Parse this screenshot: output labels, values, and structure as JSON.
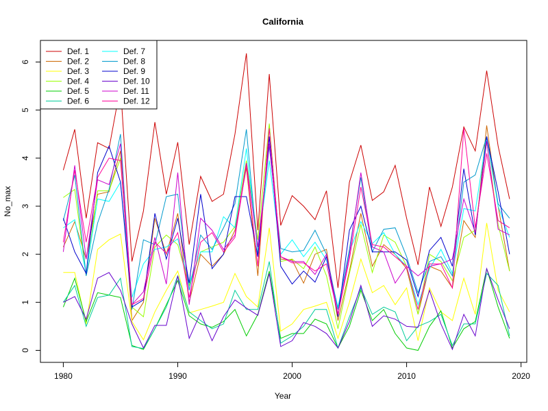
{
  "chart_data": {
    "type": "line",
    "title": "California",
    "xlabel": "Year",
    "ylabel": "No_max",
    "xlim": [
      1978,
      2020.5
    ],
    "ylim": [
      -0.25,
      6.45
    ],
    "x_ticks": [
      1980,
      1990,
      2000,
      2010,
      2020
    ],
    "y_ticks": [
      0,
      1,
      2,
      3,
      4,
      5,
      6
    ],
    "grid": false,
    "legend_position": "top-left",
    "x": [
      1980,
      1981,
      1982,
      1983,
      1984,
      1985,
      1986,
      1987,
      1988,
      1989,
      1990,
      1991,
      1992,
      1993,
      1994,
      1995,
      1996,
      1997,
      1998,
      1999,
      2000,
      2001,
      2002,
      2003,
      2004,
      2005,
      2006,
      2007,
      2008,
      2009,
      2010,
      2011,
      2012,
      2013,
      2014,
      2015,
      2016,
      2017,
      2018,
      2019
    ],
    "series": [
      {
        "name": "Def. 1",
        "color": "#CC0000",
        "values": [
          3.75,
          4.6,
          2.75,
          4.32,
          4.2,
          5.5,
          1.85,
          2.9,
          4.75,
          3.25,
          4.33,
          2.2,
          3.62,
          3.1,
          3.25,
          4.5,
          6.18,
          2.5,
          5.75,
          2.6,
          3.22,
          3.0,
          2.72,
          3.32,
          1.3,
          3.5,
          4.27,
          3.12,
          3.3,
          3.85,
          2.75,
          1.78,
          3.4,
          2.58,
          3.4,
          4.65,
          4.15,
          5.82,
          4.25,
          3.15
        ]
      },
      {
        "name": "Def. 2",
        "color": "#CC6600",
        "values": [
          2.15,
          2.68,
          1.9,
          3.25,
          3.3,
          4.15,
          0.62,
          1.0,
          2.75,
          2.0,
          2.85,
          1.0,
          2.0,
          1.75,
          2.0,
          2.5,
          3.8,
          1.55,
          4.7,
          1.9,
          1.88,
          1.4,
          2.0,
          2.1,
          0.62,
          1.65,
          2.85,
          1.75,
          2.2,
          2.0,
          1.7,
          0.75,
          1.75,
          1.65,
          1.3,
          2.7,
          2.35,
          4.68,
          3.0,
          1.65
        ]
      },
      {
        "name": "Def. 3",
        "color": "#FFFF00",
        "values": [
          1.62,
          1.62,
          0.55,
          2.1,
          2.3,
          2.42,
          0.6,
          0.22,
          0.8,
          1.25,
          1.65,
          0.78,
          0.85,
          0.92,
          1.0,
          1.6,
          1.12,
          0.9,
          2.55,
          0.4,
          0.55,
          0.85,
          0.92,
          1.0,
          0.25,
          1.0,
          1.9,
          1.2,
          1.35,
          0.95,
          1.3,
          0.2,
          1.3,
          0.8,
          0.62,
          1.5,
          0.75,
          2.65,
          1.25,
          0.8
        ]
      },
      {
        "name": "Def. 4",
        "color": "#99FF00",
        "values": [
          3.18,
          3.35,
          1.55,
          3.32,
          3.32,
          4.0,
          0.9,
          0.7,
          2.15,
          2.4,
          2.2,
          1.35,
          2.05,
          2.15,
          2.25,
          2.58,
          3.95,
          2.3,
          4.72,
          1.85,
          1.9,
          1.7,
          2.15,
          1.55,
          0.45,
          1.6,
          2.62,
          1.62,
          2.4,
          2.25,
          1.75,
          0.75,
          2.0,
          1.85,
          1.45,
          2.35,
          2.5,
          4.35,
          2.62,
          1.65
        ]
      },
      {
        "name": "Def. 5",
        "color": "#00CC00",
        "values": [
          0.9,
          1.5,
          0.6,
          1.2,
          1.15,
          1.1,
          0.1,
          0.02,
          0.45,
          0.95,
          1.45,
          0.72,
          0.55,
          0.48,
          0.6,
          0.85,
          0.3,
          0.75,
          1.65,
          0.25,
          0.35,
          0.35,
          0.65,
          0.55,
          0.05,
          0.5,
          1.25,
          0.62,
          0.85,
          0.35,
          0.05,
          0.0,
          0.5,
          0.82,
          0.05,
          0.45,
          0.6,
          1.7,
          0.9,
          0.25
        ]
      },
      {
        "name": "Def. 6",
        "color": "#00CC99",
        "values": [
          1.0,
          1.35,
          0.5,
          1.1,
          1.15,
          1.5,
          0.08,
          0.04,
          0.45,
          0.9,
          1.55,
          0.8,
          0.62,
          0.45,
          0.55,
          1.25,
          0.85,
          0.85,
          1.85,
          0.15,
          0.3,
          0.5,
          0.85,
          0.85,
          0.05,
          0.7,
          1.3,
          0.75,
          0.9,
          0.8,
          0.2,
          0.5,
          0.6,
          0.75,
          0.1,
          0.55,
          0.55,
          1.6,
          1.35,
          0.3
        ]
      },
      {
        "name": "Def. 7",
        "color": "#00FFFF",
        "values": [
          2.55,
          2.72,
          1.6,
          3.15,
          3.1,
          3.5,
          1.1,
          1.8,
          2.1,
          2.15,
          2.32,
          1.4,
          2.05,
          2.05,
          2.78,
          2.55,
          4.2,
          2.15,
          3.95,
          2.0,
          2.3,
          1.95,
          2.25,
          1.88,
          0.9,
          2.05,
          2.68,
          2.22,
          2.45,
          2.0,
          1.75,
          0.95,
          1.7,
          2.1,
          1.6,
          2.95,
          2.9,
          4.45,
          3.0,
          2.35
        ]
      },
      {
        "name": "Def. 8",
        "color": "#0099CC",
        "values": [
          2.7,
          3.65,
          1.55,
          2.65,
          3.35,
          4.5,
          0.85,
          2.3,
          2.2,
          3.2,
          3.25,
          1.25,
          2.4,
          2.1,
          2.55,
          3.05,
          4.6,
          2.0,
          4.25,
          2.12,
          2.05,
          2.08,
          2.5,
          2.0,
          0.85,
          2.1,
          3.6,
          2.05,
          2.52,
          2.55,
          1.95,
          1.2,
          1.85,
          1.95,
          1.55,
          3.5,
          3.65,
          4.45,
          3.05,
          2.75
        ]
      },
      {
        "name": "Def. 9",
        "color": "#0000CC",
        "values": [
          2.75,
          2.05,
          1.6,
          3.7,
          4.25,
          3.5,
          0.9,
          1.05,
          2.85,
          1.9,
          2.75,
          1.4,
          3.25,
          1.7,
          2.0,
          3.2,
          3.2,
          1.95,
          4.45,
          1.75,
          1.38,
          1.65,
          1.42,
          1.95,
          0.7,
          2.5,
          3.0,
          2.05,
          2.05,
          2.05,
          1.88,
          1.12,
          2.08,
          2.35,
          1.75,
          3.78,
          2.4,
          4.45,
          3.3,
          2.0
        ]
      },
      {
        "name": "Def. 10",
        "color": "#6600CC",
        "values": [
          1.0,
          1.12,
          0.65,
          1.5,
          1.62,
          1.25,
          0.55,
          0.05,
          0.52,
          0.52,
          1.55,
          0.25,
          0.78,
          0.2,
          0.7,
          1.05,
          0.88,
          0.73,
          1.6,
          0.08,
          0.2,
          0.58,
          0.5,
          0.35,
          0.05,
          0.6,
          1.35,
          0.5,
          0.72,
          0.65,
          0.5,
          0.48,
          1.25,
          0.55,
          0.02,
          0.75,
          0.3,
          1.7,
          1.05,
          0.45
        ]
      },
      {
        "name": "Def. 11",
        "color": "#CC00CC",
        "values": [
          2.05,
          3.85,
          1.9,
          3.55,
          3.45,
          4.3,
          0.95,
          1.22,
          2.35,
          1.38,
          3.7,
          0.95,
          2.75,
          2.5,
          2.1,
          2.4,
          3.9,
          2.15,
          4.3,
          1.95,
          1.85,
          1.85,
          1.58,
          2.0,
          0.75,
          2.0,
          3.7,
          2.15,
          2.05,
          1.4,
          1.75,
          1.55,
          1.75,
          1.8,
          1.9,
          3.15,
          2.45,
          4.35,
          2.52,
          2.4
        ]
      },
      {
        "name": "Def. 12",
        "color": "#FF0099",
        "values": [
          2.25,
          3.75,
          2.25,
          3.6,
          4.0,
          3.95,
          0.95,
          1.08,
          2.25,
          2.02,
          2.45,
          1.1,
          2.25,
          2.45,
          2.05,
          2.35,
          3.85,
          1.75,
          4.62,
          1.95,
          1.82,
          1.82,
          1.65,
          1.8,
          0.75,
          1.9,
          3.4,
          2.2,
          2.15,
          1.95,
          1.75,
          0.85,
          1.8,
          1.8,
          1.3,
          4.62,
          2.55,
          4.1,
          2.7,
          2.55
        ]
      }
    ]
  }
}
